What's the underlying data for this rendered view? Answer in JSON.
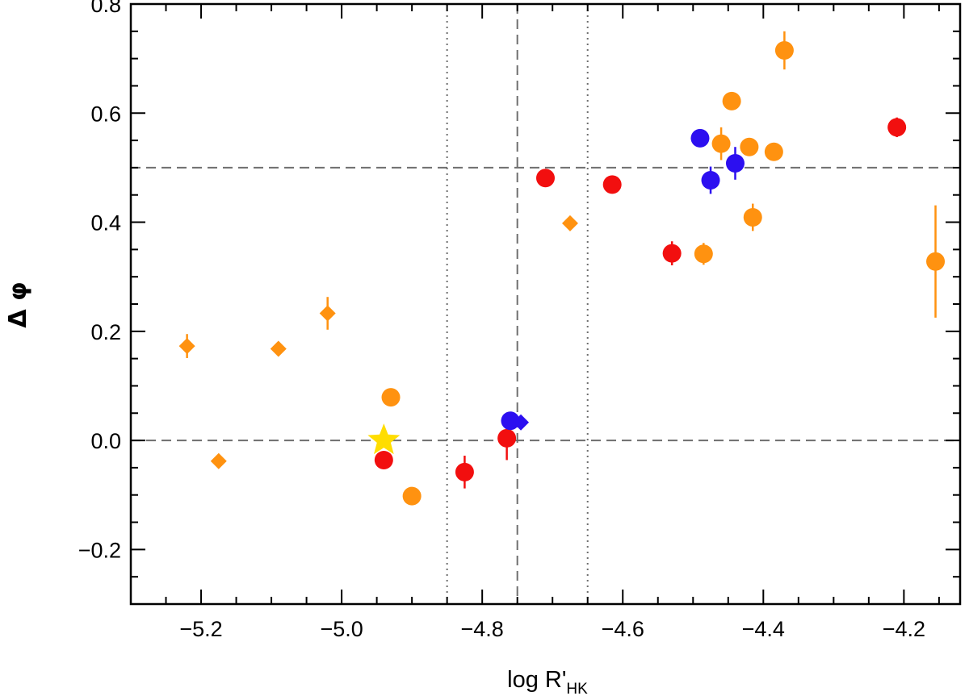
{
  "chart_data": {
    "type": "scatter",
    "xlabel": {
      "base": "log R'",
      "sub": "HK"
    },
    "ylabel": "Δ φ",
    "xlim": [
      -5.3,
      -4.12
    ],
    "ylim": [
      -0.3,
      0.8
    ],
    "x_ticks": [
      -5.2,
      -5.0,
      -4.8,
      -4.6,
      -4.4,
      -4.2
    ],
    "x_tick_labels": [
      "−5.2",
      "−5.0",
      "−4.8",
      "−4.6",
      "−4.4",
      "−4.2"
    ],
    "x_minor_step": 0.05,
    "y_ticks": [
      -0.2,
      0.0,
      0.2,
      0.4,
      0.6,
      0.8
    ],
    "y_tick_labels": [
      "−0.2",
      "0.0",
      "0.2",
      "0.4",
      "0.6",
      "0.8"
    ],
    "y_minor_step": 0.05,
    "hlines": [
      {
        "y": 0.0,
        "style": "dashed"
      },
      {
        "y": 0.5,
        "style": "dashed"
      }
    ],
    "vlines": [
      {
        "x": -4.85,
        "style": "dotted"
      },
      {
        "x": -4.75,
        "style": "dashed"
      },
      {
        "x": -4.65,
        "style": "dotted"
      }
    ],
    "colors": {
      "orange": "#FF9210",
      "red": "#F20F0F",
      "blue": "#2C0FF0",
      "gold": "#FFDD00",
      "refline": "#6e6e6e"
    },
    "series": [
      {
        "color": "orange",
        "marker": "circle",
        "points": [
          {
            "x": -4.37,
            "y": 0.715,
            "err": 0.035
          },
          {
            "x": -4.445,
            "y": 0.622,
            "err": 0.012
          },
          {
            "x": -4.46,
            "y": 0.544,
            "err": 0.03
          },
          {
            "x": -4.42,
            "y": 0.538,
            "err": 0.012
          },
          {
            "x": -4.385,
            "y": 0.529,
            "err": 0.012
          },
          {
            "x": -4.415,
            "y": 0.409,
            "err": 0.025
          },
          {
            "x": -4.485,
            "y": 0.342,
            "err": 0.02
          },
          {
            "x": -4.155,
            "y": 0.328,
            "err": 0.103
          },
          {
            "x": -4.93,
            "y": 0.079,
            "err": 0.012
          },
          {
            "x": -4.9,
            "y": -0.102,
            "err": 0.012
          }
        ]
      },
      {
        "color": "orange",
        "marker": "diamond",
        "points": [
          {
            "x": -4.675,
            "y": 0.398,
            "err": 0.01
          },
          {
            "x": -5.02,
            "y": 0.233,
            "err": 0.03
          },
          {
            "x": -5.22,
            "y": 0.173,
            "err": 0.022
          },
          {
            "x": -5.09,
            "y": 0.168,
            "err": 0.01
          },
          {
            "x": -5.175,
            "y": -0.038,
            "err": 0.01
          }
        ]
      },
      {
        "color": "red",
        "marker": "circle",
        "points": [
          {
            "x": -4.21,
            "y": 0.574,
            "err": 0.018
          },
          {
            "x": -4.71,
            "y": 0.481,
            "err": 0.012
          },
          {
            "x": -4.615,
            "y": 0.469,
            "err": 0.012
          },
          {
            "x": -4.53,
            "y": 0.343,
            "err": 0.022
          },
          {
            "x": -4.765,
            "y": 0.004,
            "err": 0.04
          },
          {
            "x": -4.94,
            "y": -0.036,
            "err": 0.012
          },
          {
            "x": -4.825,
            "y": -0.058,
            "err": 0.03
          }
        ]
      },
      {
        "color": "blue",
        "marker": "circle",
        "points": [
          {
            "x": -4.49,
            "y": 0.554,
            "err": 0.012
          },
          {
            "x": -4.475,
            "y": 0.477,
            "err": 0.025
          },
          {
            "x": -4.44,
            "y": 0.508,
            "err": 0.03
          },
          {
            "x": -4.76,
            "y": 0.036,
            "err": 0.012
          }
        ]
      },
      {
        "color": "blue",
        "marker": "diamond",
        "points": [
          {
            "x": -4.745,
            "y": 0.033,
            "err": 0.01
          }
        ]
      },
      {
        "color": "gold",
        "marker": "star",
        "points": [
          {
            "x": -4.94,
            "y": 0.0,
            "err": 0
          }
        ]
      }
    ]
  }
}
